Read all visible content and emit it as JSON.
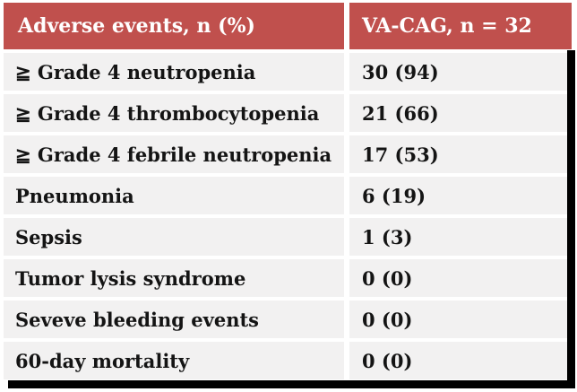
{
  "table": {
    "header": {
      "col1": "Adverse events, n (%)",
      "col2": "VA-CAG, n = 32"
    },
    "rows": [
      {
        "label": "≧ Grade 4 neutropenia",
        "value": "30 (94)"
      },
      {
        "label": "≧ Grade 4 thrombocytopenia",
        "value": "21 (66)"
      },
      {
        "label": "≧ Grade 4 febrile  neutropenia",
        "value": "17 (53)"
      },
      {
        "label": "Pneumonia",
        "value": "6 (19)"
      },
      {
        "label": "Sepsis",
        "value": "1 (3)"
      },
      {
        "label": "Tumor lysis  syndrome",
        "value": "0 (0)"
      },
      {
        "label": "Seveve bleeding  events",
        "value": "0 (0)"
      },
      {
        "label": "60-day mortality",
        "value": "0 (0)"
      }
    ]
  },
  "colors": {
    "header_bg": "#C0504D",
    "header_text": "#FFFFFF",
    "row_bg": "#F2F1F1",
    "row_text": "#141414",
    "frame": "#000000"
  },
  "chart_data": {
    "type": "table",
    "title": "Adverse events, n (%)",
    "columns": [
      "Adverse events, n (%)",
      "VA-CAG, n = 32"
    ],
    "n_total": 32,
    "rows": [
      {
        "event": "≧ Grade 4 neutropenia",
        "n": 30,
        "pct": 94
      },
      {
        "event": "≧ Grade 4 thrombocytopenia",
        "n": 21,
        "pct": 66
      },
      {
        "event": "≧ Grade 4 febrile neutropenia",
        "n": 17,
        "pct": 53
      },
      {
        "event": "Pneumonia",
        "n": 6,
        "pct": 19
      },
      {
        "event": "Sepsis",
        "n": 1,
        "pct": 3
      },
      {
        "event": "Tumor lysis syndrome",
        "n": 0,
        "pct": 0
      },
      {
        "event": "Seveve bleeding events",
        "n": 0,
        "pct": 0
      },
      {
        "event": "60-day mortality",
        "n": 0,
        "pct": 0
      }
    ],
    "layout": {
      "header_style": "red-bar",
      "rows_style": "light-gray",
      "frame": "black right+bottom"
    }
  }
}
